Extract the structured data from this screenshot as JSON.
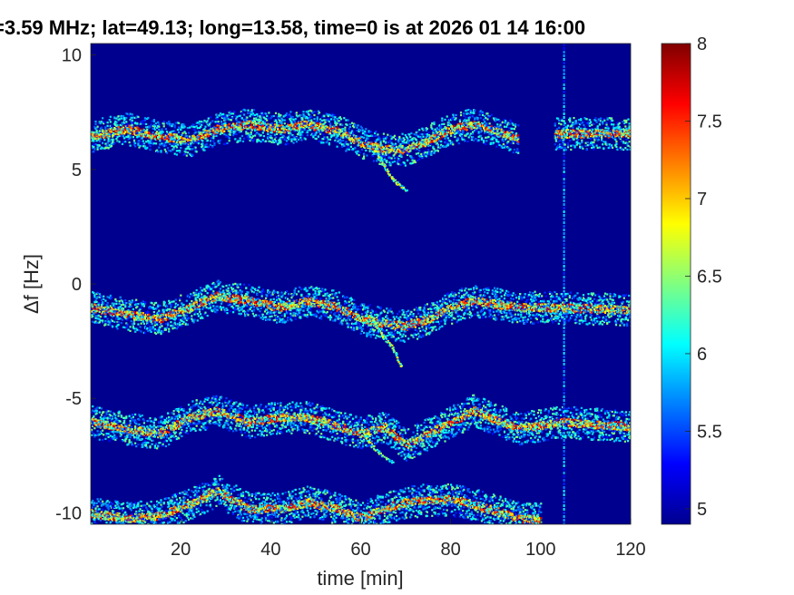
{
  "chart_data": {
    "type": "heatmap",
    "title": "=3.59 MHz;  lat=49.13; long=13.58, time=0 is at 2026 01 14 16:00",
    "xlabel": "time [min]",
    "ylabel": "Δf [Hz]",
    "xlim": [
      0,
      120
    ],
    "ylim": [
      -10.5,
      10.5
    ],
    "x_ticks": [
      "20",
      "40",
      "60",
      "80",
      "100",
      "120"
    ],
    "x_tick_values": [
      20,
      40,
      60,
      80,
      100,
      120
    ],
    "y_ticks": [
      "-10",
      "-5",
      "0",
      "5",
      "10"
    ],
    "y_tick_values": [
      -10,
      -5,
      0,
      5,
      10
    ],
    "colorbar": {
      "range": [
        4.9,
        8.0
      ],
      "ticks": [
        "5",
        "5.5",
        "6",
        "6.5",
        "7",
        "7.5",
        "8"
      ],
      "tick_values": [
        5,
        5.5,
        6,
        6.5,
        7,
        7.5,
        8
      ],
      "colormap": "jet"
    },
    "background_value": 5.0,
    "traces": [
      {
        "offset": 6.5,
        "points": [
          [
            0,
            6.5
          ],
          [
            8,
            6.8
          ],
          [
            15,
            6.5
          ],
          [
            22,
            6.3
          ],
          [
            28,
            6.8
          ],
          [
            35,
            7.0
          ],
          [
            42,
            6.8
          ],
          [
            48,
            7.0
          ],
          [
            55,
            6.7
          ],
          [
            60,
            6.2
          ],
          [
            65,
            5.9
          ],
          [
            70,
            5.9
          ],
          [
            75,
            6.3
          ],
          [
            80,
            6.8
          ],
          [
            85,
            7.0
          ],
          [
            95,
            6.4
          ],
          [
            104,
            6.6
          ],
          [
            120,
            6.6
          ]
        ],
        "segments": [
          [
            0,
            95
          ],
          [
            103,
            120
          ]
        ]
      },
      {
        "offset": -1.0,
        "points": [
          [
            0,
            -1.0
          ],
          [
            8,
            -1.3
          ],
          [
            15,
            -1.5
          ],
          [
            22,
            -1.0
          ],
          [
            28,
            -0.5
          ],
          [
            35,
            -0.7
          ],
          [
            42,
            -1.0
          ],
          [
            48,
            -0.7
          ],
          [
            55,
            -1.0
          ],
          [
            60,
            -1.5
          ],
          [
            65,
            -1.7
          ],
          [
            70,
            -1.8
          ],
          [
            75,
            -1.5
          ],
          [
            80,
            -1.0
          ],
          [
            85,
            -0.7
          ],
          [
            95,
            -1.0
          ],
          [
            104,
            -1.0
          ],
          [
            120,
            -1.1
          ]
        ],
        "segments": [
          [
            0,
            95
          ],
          [
            95,
            120
          ]
        ]
      },
      {
        "offset": -6.0,
        "points": [
          [
            0,
            -6.0
          ],
          [
            8,
            -6.3
          ],
          [
            15,
            -6.5
          ],
          [
            22,
            -5.8
          ],
          [
            28,
            -5.5
          ],
          [
            35,
            -6.0
          ],
          [
            42,
            -5.8
          ],
          [
            48,
            -5.8
          ],
          [
            55,
            -6.2
          ],
          [
            60,
            -6.5
          ],
          [
            65,
            -6.2
          ],
          [
            70,
            -7.0
          ],
          [
            75,
            -6.5
          ],
          [
            80,
            -6.0
          ],
          [
            85,
            -5.5
          ],
          [
            95,
            -6.3
          ],
          [
            104,
            -6.0
          ],
          [
            120,
            -6.2
          ]
        ],
        "segments": [
          [
            0,
            95
          ],
          [
            95,
            120
          ]
        ]
      },
      {
        "offset": -10.0,
        "points": [
          [
            0,
            -10.0
          ],
          [
            8,
            -10.2
          ],
          [
            15,
            -10.1
          ],
          [
            22,
            -9.6
          ],
          [
            28,
            -9.0
          ],
          [
            35,
            -9.8
          ],
          [
            42,
            -9.8
          ],
          [
            48,
            -9.5
          ],
          [
            55,
            -9.8
          ],
          [
            60,
            -10.2
          ],
          [
            65,
            -9.8
          ],
          [
            70,
            -9.5
          ],
          [
            75,
            -9.4
          ],
          [
            80,
            -9.4
          ],
          [
            85,
            -9.6
          ],
          [
            95,
            -10.2
          ],
          [
            104,
            -10.3
          ],
          [
            120,
            -10.4
          ]
        ],
        "segments": [
          [
            0,
            100
          ]
        ]
      }
    ],
    "hook_features": [
      {
        "points": [
          [
            63,
            5.9
          ],
          [
            65,
            5.2
          ],
          [
            67,
            4.6
          ],
          [
            70,
            4.1
          ]
        ]
      },
      {
        "points": [
          [
            62,
            -1.3
          ],
          [
            64,
            -2.0
          ],
          [
            67,
            -2.8
          ],
          [
            69,
            -3.6
          ]
        ]
      },
      {
        "points": [
          [
            60,
            -6.4
          ],
          [
            63,
            -7.2
          ],
          [
            67,
            -7.8
          ]
        ]
      }
    ],
    "vertical_line_x": 105
  },
  "colors": {
    "background": "#00008f",
    "axis_text": "#262626"
  }
}
